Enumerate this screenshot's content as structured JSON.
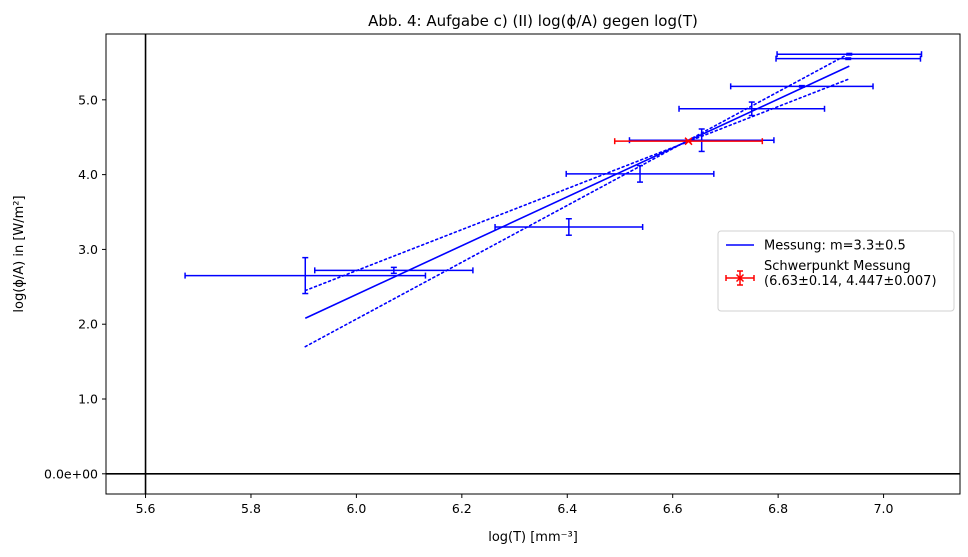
{
  "chart_data": {
    "type": "scatter",
    "title": "Abb. 4: Aufgabe c) (II) log(ϕ/A) gegen log(T)",
    "xlabel": "log(T) [mm⁻³]",
    "ylabel": "log(ϕ/A) in [W/m²]",
    "xlim": [
      5.525,
      7.145
    ],
    "ylim": [
      -0.27,
      5.88
    ],
    "x_ticks": [
      5.6,
      5.8,
      6.0,
      6.2,
      6.4,
      6.6,
      6.8,
      7.0
    ],
    "x_tick_labels": [
      "5.6",
      "5.8",
      "6.0",
      "6.2",
      "6.4",
      "6.6",
      "6.8",
      "7.0"
    ],
    "y_ticks": [
      0,
      1,
      2,
      3,
      4,
      5
    ],
    "y_tick_labels": [
      "0.0e+00",
      "1.0",
      "2.0",
      "3.0",
      "4.0",
      "5.0"
    ],
    "grid": false,
    "legend_position": "center-right",
    "reference_lines": {
      "vertical_x": 5.6,
      "horizontal_y": 0
    },
    "series": [
      {
        "name": "Messung: m=3.3±0.5",
        "kind": "errorbar-points",
        "color": "#0000ff",
        "points": [
          {
            "x": 5.903,
            "y": 2.65,
            "xerr": 0.228,
            "yerr": 0.24
          },
          {
            "x": 6.071,
            "y": 2.72,
            "xerr": 0.15,
            "yerr": 0.04
          },
          {
            "x": 6.403,
            "y": 3.3,
            "xerr": 0.14,
            "yerr": 0.11
          },
          {
            "x": 6.538,
            "y": 4.01,
            "xerr": 0.14,
            "yerr": 0.11
          },
          {
            "x": 6.655,
            "y": 4.46,
            "xerr": 0.137,
            "yerr": 0.15
          },
          {
            "x": 6.75,
            "y": 4.88,
            "xerr": 0.138,
            "yerr": 0.09
          },
          {
            "x": 6.845,
            "y": 5.18,
            "xerr": 0.135,
            "yerr": 0.01
          },
          {
            "x": 6.933,
            "y": 5.55,
            "xerr": 0.137,
            "yerr": 0.01
          },
          {
            "x": 6.935,
            "y": 5.61,
            "xerr": 0.137,
            "yerr": 0.01
          }
        ]
      },
      {
        "name": "Schwerpunkt Messung\n(6.63±0.14, 4.447±0.007)",
        "kind": "errorbar-points",
        "color": "#ff0000",
        "marker": "x",
        "points": [
          {
            "x": 6.63,
            "y": 4.447,
            "xerr": 0.14,
            "yerr": 0.007
          }
        ]
      }
    ],
    "lines": [
      {
        "kind": "fit",
        "style": "solid",
        "color": "#0000ff",
        "points": [
          [
            5.903,
            2.08
          ],
          [
            6.935,
            5.45
          ]
        ]
      },
      {
        "kind": "fit-bound",
        "style": "dotted",
        "color": "#0000ff",
        "points": [
          [
            5.903,
            2.45
          ],
          [
            6.935,
            5.28
          ]
        ]
      },
      {
        "kind": "fit-bound",
        "style": "dotted",
        "color": "#0000ff",
        "points": [
          [
            5.903,
            1.7
          ],
          [
            6.935,
            5.62
          ]
        ]
      }
    ],
    "legend": {
      "entries": [
        {
          "label_lines": [
            "Messung: m=3.3±0.5"
          ],
          "color": "#0000ff",
          "symbol": "line"
        },
        {
          "label_lines": [
            "Schwerpunkt Messung",
            "(6.63±0.14, 4.447±0.007)"
          ],
          "color": "#ff0000",
          "symbol": "errorbar-x"
        }
      ]
    }
  }
}
